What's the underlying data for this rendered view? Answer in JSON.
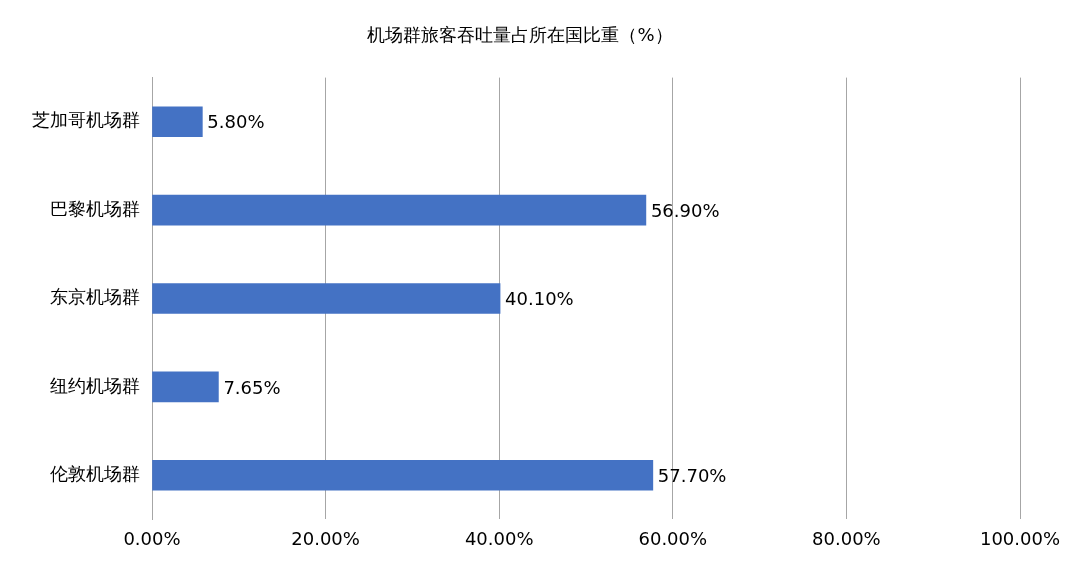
{
  "chart_data": {
    "type": "bar",
    "orientation": "horizontal",
    "title": "机场群旅客吞吐量占所在国比重（%）",
    "categories": [
      "芝加哥机场群",
      "巴黎机场群",
      "东京机场群",
      "纽约机场群",
      "伦敦机场群"
    ],
    "values": [
      5.8,
      56.9,
      40.1,
      7.65,
      57.7
    ],
    "value_labels": [
      "5.80%",
      "56.90%",
      "40.10%",
      "7.65%",
      "57.70%"
    ],
    "color": "#4472c4",
    "xlim": [
      0,
      100
    ],
    "xticks": [
      {
        "value": 0,
        "label": "0.00%"
      },
      {
        "value": 20,
        "label": "20.00%"
      },
      {
        "value": 40,
        "label": "40.00%"
      },
      {
        "value": 60,
        "label": "60.00%"
      },
      {
        "value": 80,
        "label": "80.00%"
      },
      {
        "value": 100,
        "label": "100.00%"
      }
    ],
    "grid": "x",
    "legend": false
  }
}
